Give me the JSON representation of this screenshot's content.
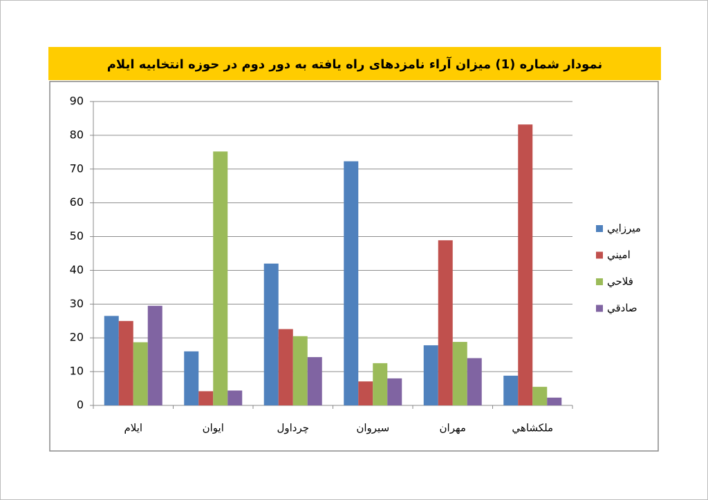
{
  "chart_data": {
    "type": "bar",
    "title": "نمودار شماره (1) میزان آراء نامزدهای راه یافته به دور دوم در حوزه انتخابیه ایلام",
    "categories": [
      "ايلام",
      "ايوان",
      "چرداول",
      "سيروان",
      "مهران",
      "ملكشاهي"
    ],
    "series": [
      {
        "name": "ميرزايي",
        "color": "#4f81bd",
        "values": [
          26.5,
          16,
          42,
          72.3,
          17.8,
          8.8
        ]
      },
      {
        "name": "اميني",
        "color": "#c0504d",
        "values": [
          25,
          4.2,
          22.6,
          7.1,
          48.9,
          83.2
        ]
      },
      {
        "name": "فلاحي",
        "color": "#9bbb59",
        "values": [
          18.7,
          75.2,
          20.5,
          12.5,
          18.8,
          5.5
        ]
      },
      {
        "name": "صادقي",
        "color": "#8064a2",
        "values": [
          29.5,
          4.4,
          14.3,
          8,
          14,
          2.3
        ]
      }
    ],
    "ylim": [
      0,
      90
    ],
    "yticks": [
      0,
      10,
      20,
      30,
      40,
      50,
      60,
      70,
      80,
      90
    ],
    "grid": true,
    "legend": "right"
  }
}
